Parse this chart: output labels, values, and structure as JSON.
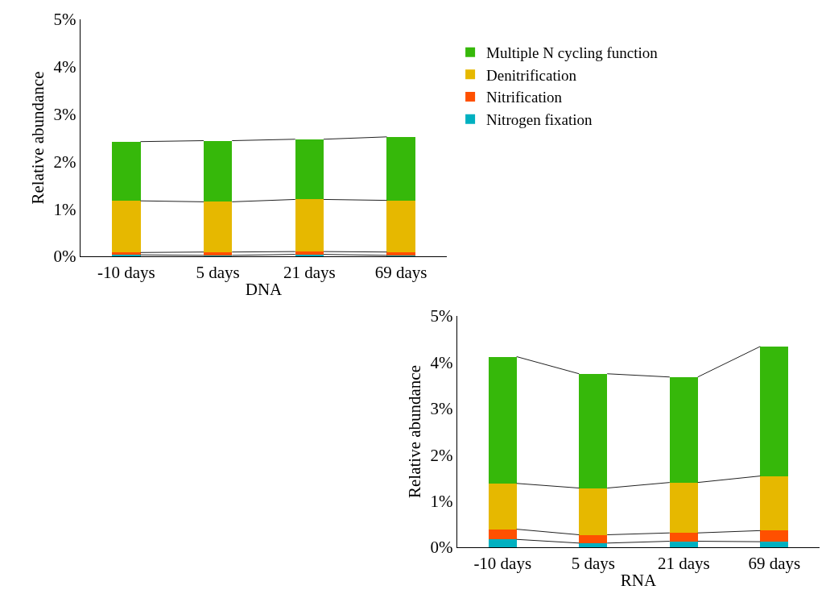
{
  "chart_data": [
    {
      "type": "bar",
      "stacked": true,
      "xlabel": "DNA",
      "ylabel": "Relative abundance",
      "categories": [
        "-10 days",
        "5 days",
        "21 days",
        "69 days"
      ],
      "series": [
        {
          "name": "Nitrogen fixation",
          "color": "#00b0c0",
          "values": [
            0.03,
            0.02,
            0.04,
            0.02
          ]
        },
        {
          "name": "Nitrification",
          "color": "#ff5000",
          "values": [
            0.05,
            0.07,
            0.06,
            0.07
          ]
        },
        {
          "name": "Denitrification",
          "color": "#e6b800",
          "values": [
            1.09,
            1.06,
            1.1,
            1.09
          ]
        },
        {
          "name": "Multiple N cycling function",
          "color": "#36b80a",
          "values": [
            1.25,
            1.29,
            1.27,
            1.34
          ]
        }
      ],
      "ylim": [
        0,
        5
      ],
      "yticks": [
        {
          "value": 0,
          "label": "0%"
        },
        {
          "value": 1,
          "label": "1%"
        },
        {
          "value": 2,
          "label": "2%"
        },
        {
          "value": 3,
          "label": "3%"
        },
        {
          "value": 4,
          "label": "4%"
        },
        {
          "value": 5,
          "label": "5%"
        }
      ],
      "grid": false,
      "legend": "right"
    },
    {
      "type": "bar",
      "stacked": true,
      "xlabel": "RNA",
      "ylabel": "Relative abundance",
      "categories": [
        "-10 days",
        "5 days",
        "21 days",
        "69 days"
      ],
      "series": [
        {
          "color": "#00b0c0",
          "values": [
            0.17,
            0.09,
            0.13,
            0.12
          ]
        },
        {
          "color": "#ff5000",
          "values": [
            0.22,
            0.18,
            0.18,
            0.24
          ]
        },
        {
          "color": "#e6b800",
          "values": [
            0.99,
            1.01,
            1.09,
            1.18
          ]
        },
        {
          "color": "#36b80a",
          "values": [
            2.74,
            2.47,
            2.28,
            2.8
          ]
        }
      ],
      "ylim": [
        0,
        5
      ],
      "yticks": [
        {
          "value": 0,
          "label": "0%"
        },
        {
          "value": 1,
          "label": "1%"
        },
        {
          "value": 2,
          "label": "2%"
        },
        {
          "value": 3,
          "label": "3%"
        },
        {
          "value": 4,
          "label": "4%"
        },
        {
          "value": 5,
          "label": "5%"
        }
      ],
      "grid": false,
      "legend": false
    }
  ]
}
